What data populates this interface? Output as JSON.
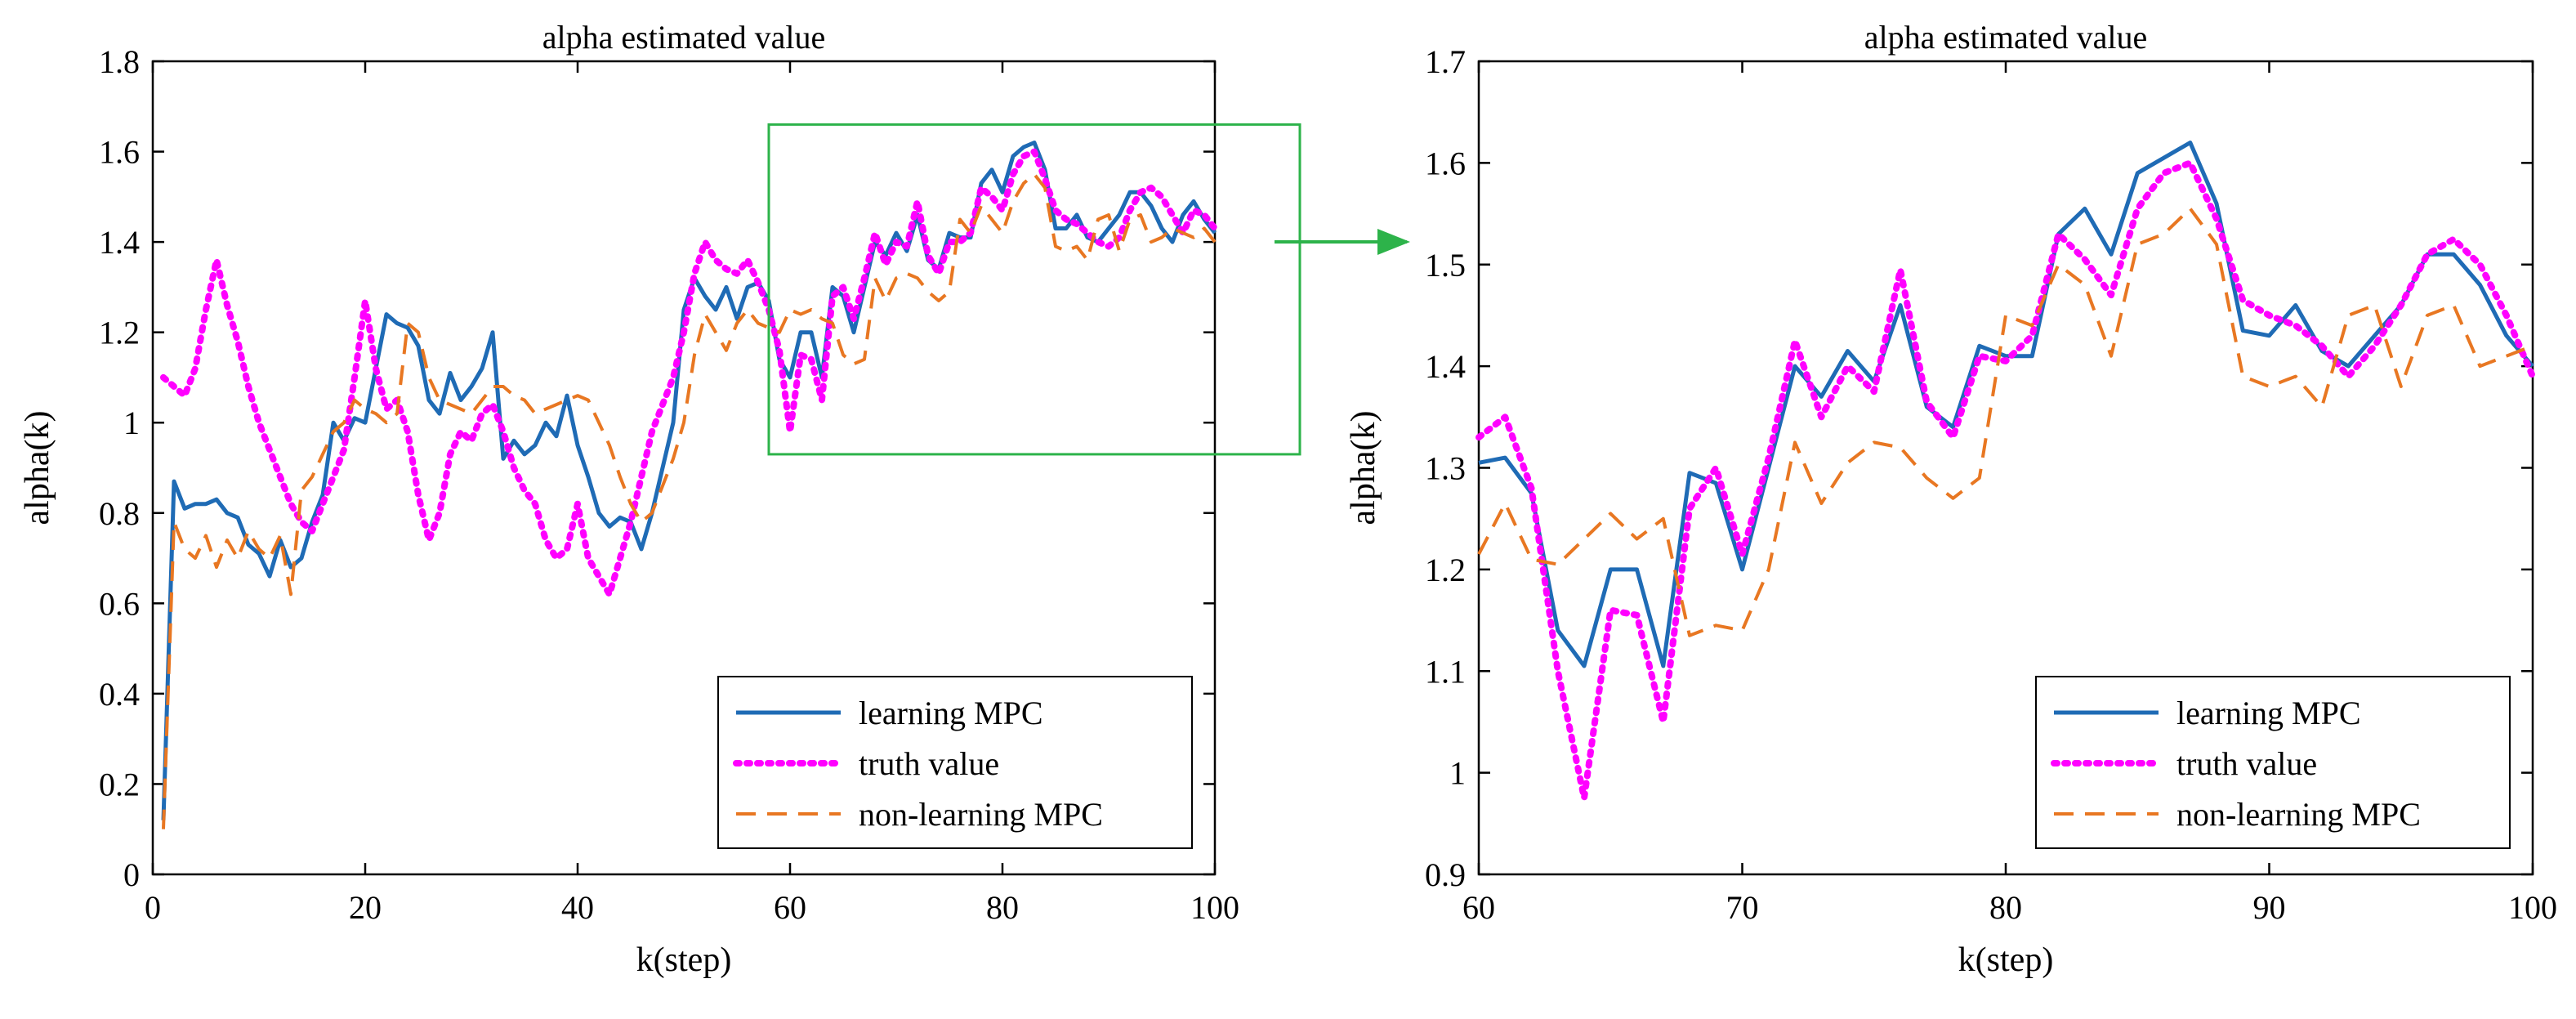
{
  "chart_data": [
    {
      "type": "line",
      "title": "alpha estimated value",
      "xlabel": "k(step)",
      "ylabel": "alpha(k)",
      "xlim": [
        0,
        100
      ],
      "ylim": [
        0,
        1.8
      ],
      "xticks": [
        0,
        20,
        40,
        60,
        80,
        100
      ],
      "yticks": [
        0,
        0.2,
        0.4,
        0.6,
        0.8,
        1,
        1.2,
        1.4,
        1.6,
        1.8
      ],
      "xtick_labels": [
        "0",
        "20",
        "40",
        "60",
        "80",
        "100"
      ],
      "ytick_labels": [
        "0",
        "0.2",
        "0.4",
        "0.6",
        "0.8",
        "1",
        "1.2",
        "1.4",
        "1.6",
        "1.8"
      ],
      "legend": {
        "position": "bottom-right",
        "entries": [
          "learning MPC",
          "truth value",
          "non-learning MPC"
        ]
      },
      "zoom_box": {
        "x": [
          58,
          108
        ],
        "y": [
          0.93,
          1.66
        ],
        "color": "#2db34a"
      },
      "series": [
        {
          "name": "learning MPC",
          "color": "#1f6bb5",
          "style": "solid",
          "x": [
            1,
            2,
            3,
            4,
            5,
            6,
            7,
            8,
            9,
            10,
            11,
            12,
            13,
            14,
            15,
            16,
            17,
            18,
            19,
            20,
            21,
            22,
            23,
            24,
            25,
            26,
            27,
            28,
            29,
            30,
            31,
            32,
            33,
            34,
            35,
            36,
            37,
            38,
            39,
            40,
            41,
            42,
            43,
            44,
            45,
            46,
            47,
            48,
            49,
            50,
            51,
            52,
            53,
            54,
            55,
            56,
            57,
            58,
            59,
            60,
            61,
            62,
            63,
            64,
            65,
            66,
            67,
            68,
            69,
            70,
            71,
            72,
            73,
            74,
            75,
            76,
            77,
            78,
            79,
            80,
            81,
            82,
            83,
            84,
            85,
            86,
            87,
            88,
            89,
            90,
            91,
            92,
            93,
            94,
            95,
            96,
            97,
            98,
            99,
            100
          ],
          "y": [
            0.12,
            0.87,
            0.81,
            0.82,
            0.82,
            0.83,
            0.8,
            0.79,
            0.73,
            0.71,
            0.66,
            0.74,
            0.68,
            0.7,
            0.78,
            0.84,
            1.0,
            0.96,
            1.01,
            1.0,
            1.12,
            1.24,
            1.22,
            1.21,
            1.17,
            1.05,
            1.02,
            1.11,
            1.05,
            1.08,
            1.12,
            1.2,
            0.92,
            0.96,
            0.93,
            0.95,
            1.0,
            0.97,
            1.06,
            0.95,
            0.88,
            0.8,
            0.77,
            0.79,
            0.78,
            0.72,
            0.8,
            0.9,
            1.0,
            1.25,
            1.32,
            1.28,
            1.25,
            1.3,
            1.23,
            1.3,
            1.31,
            1.27,
            1.14,
            1.1,
            1.2,
            1.2,
            1.1,
            1.3,
            1.28,
            1.2,
            1.3,
            1.4,
            1.37,
            1.42,
            1.38,
            1.46,
            1.36,
            1.34,
            1.42,
            1.41,
            1.41,
            1.53,
            1.56,
            1.51,
            1.59,
            1.61,
            1.62,
            1.56,
            1.43,
            1.43,
            1.46,
            1.41,
            1.4,
            1.43,
            1.46,
            1.51,
            1.51,
            1.48,
            1.43,
            1.4,
            1.46,
            1.49,
            1.45,
            1.42
          ]
        },
        {
          "name": "truth value",
          "color": "#ff00ff",
          "style": "dotted",
          "x": [
            1,
            2,
            3,
            4,
            5,
            6,
            7,
            8,
            9,
            10,
            11,
            12,
            13,
            14,
            15,
            16,
            17,
            18,
            19,
            20,
            21,
            22,
            23,
            24,
            25,
            26,
            27,
            28,
            29,
            30,
            31,
            32,
            33,
            34,
            35,
            36,
            37,
            38,
            39,
            40,
            41,
            42,
            43,
            44,
            45,
            46,
            47,
            48,
            49,
            50,
            51,
            52,
            53,
            54,
            55,
            56,
            57,
            58,
            59,
            60,
            61,
            62,
            63,
            64,
            65,
            66,
            67,
            68,
            69,
            70,
            71,
            72,
            73,
            74,
            75,
            76,
            77,
            78,
            79,
            80,
            81,
            82,
            83,
            84,
            85,
            86,
            87,
            88,
            89,
            90,
            91,
            92,
            93,
            94,
            95,
            96,
            97,
            98,
            99,
            100
          ],
          "y": [
            1.1,
            1.08,
            1.06,
            1.12,
            1.25,
            1.36,
            1.26,
            1.18,
            1.08,
            1.0,
            0.94,
            0.88,
            0.82,
            0.78,
            0.76,
            0.82,
            0.88,
            0.94,
            1.1,
            1.27,
            1.12,
            1.03,
            1.05,
            0.98,
            0.84,
            0.74,
            0.8,
            0.93,
            0.98,
            0.96,
            1.02,
            1.04,
            0.98,
            0.9,
            0.85,
            0.82,
            0.74,
            0.7,
            0.72,
            0.82,
            0.7,
            0.66,
            0.62,
            0.7,
            0.78,
            0.88,
            0.98,
            1.04,
            1.1,
            1.2,
            1.33,
            1.4,
            1.36,
            1.34,
            1.33,
            1.36,
            1.31,
            1.25,
            1.16,
            0.98,
            1.15,
            1.14,
            1.05,
            1.28,
            1.3,
            1.23,
            1.32,
            1.42,
            1.35,
            1.4,
            1.39,
            1.49,
            1.37,
            1.33,
            1.4,
            1.4,
            1.42,
            1.52,
            1.5,
            1.47,
            1.55,
            1.59,
            1.6,
            1.54,
            1.47,
            1.45,
            1.44,
            1.42,
            1.4,
            1.39,
            1.41,
            1.47,
            1.51,
            1.52,
            1.5,
            1.46,
            1.42,
            1.47,
            1.46,
            1.43
          ]
        },
        {
          "name": "non-learning MPC",
          "color": "#e87722",
          "style": "dashed",
          "x": [
            1,
            2,
            3,
            4,
            5,
            6,
            7,
            8,
            9,
            10,
            11,
            12,
            13,
            14,
            15,
            16,
            17,
            18,
            19,
            20,
            21,
            22,
            23,
            24,
            25,
            26,
            27,
            28,
            29,
            30,
            31,
            32,
            33,
            34,
            35,
            36,
            37,
            38,
            39,
            40,
            41,
            42,
            43,
            44,
            45,
            46,
            47,
            48,
            49,
            50,
            51,
            52,
            53,
            54,
            55,
            56,
            57,
            58,
            59,
            60,
            61,
            62,
            63,
            64,
            65,
            66,
            67,
            68,
            69,
            70,
            71,
            72,
            73,
            74,
            75,
            76,
            77,
            78,
            79,
            80,
            81,
            82,
            83,
            84,
            85,
            86,
            87,
            88,
            89,
            90,
            91,
            92,
            93,
            94,
            95,
            96,
            97,
            98,
            99,
            100
          ],
          "y": [
            0.1,
            0.78,
            0.72,
            0.7,
            0.75,
            0.68,
            0.74,
            0.7,
            0.76,
            0.72,
            0.7,
            0.75,
            0.62,
            0.85,
            0.88,
            0.93,
            0.98,
            1.0,
            1.05,
            1.03,
            1.02,
            1.0,
            1.02,
            1.22,
            1.2,
            1.1,
            1.05,
            1.04,
            1.03,
            1.02,
            1.05,
            1.08,
            1.08,
            1.06,
            1.05,
            1.02,
            1.03,
            1.04,
            1.05,
            1.06,
            1.05,
            1.0,
            0.95,
            0.88,
            0.82,
            0.78,
            0.8,
            0.86,
            0.92,
            1.0,
            1.15,
            1.24,
            1.2,
            1.16,
            1.22,
            1.25,
            1.22,
            1.21,
            1.2,
            1.25,
            1.24,
            1.25,
            1.23,
            1.22,
            1.15,
            1.13,
            1.14,
            1.32,
            1.27,
            1.32,
            1.33,
            1.32,
            1.29,
            1.27,
            1.29,
            1.45,
            1.42,
            1.48,
            1.45,
            1.42,
            1.49,
            1.53,
            1.55,
            1.52,
            1.39,
            1.38,
            1.39,
            1.36,
            1.45,
            1.46,
            1.38,
            1.45,
            1.46,
            1.4,
            1.41,
            1.43,
            1.42,
            1.41,
            1.43,
            1.4
          ]
        }
      ]
    },
    {
      "type": "line",
      "title": "alpha estimated value",
      "xlabel": "k(step)",
      "ylabel": "alpha(k)",
      "xlim": [
        60,
        100
      ],
      "ylim": [
        0.9,
        1.7
      ],
      "xticks": [
        60,
        70,
        80,
        90,
        100
      ],
      "yticks": [
        0.9,
        1,
        1.1,
        1.2,
        1.3,
        1.4,
        1.5,
        1.6,
        1.7
      ],
      "xtick_labels": [
        "60",
        "70",
        "80",
        "90",
        "100"
      ],
      "ytick_labels": [
        "0.9",
        "1",
        "1.1",
        "1.2",
        "1.3",
        "1.4",
        "1.5",
        "1.6",
        "1.7"
      ],
      "legend": {
        "position": "bottom-right",
        "entries": [
          "learning MPC",
          "truth value",
          "non-learning MPC"
        ]
      },
      "series": [
        {
          "name": "learning MPC",
          "color": "#1f6bb5",
          "style": "solid",
          "x": [
            60,
            61,
            62,
            63,
            64,
            65,
            66,
            67,
            68,
            69,
            70,
            71,
            72,
            73,
            74,
            75,
            76,
            77,
            78,
            79,
            80,
            81,
            82,
            83,
            84,
            85,
            86,
            87,
            88,
            89,
            90,
            91,
            92,
            93,
            94,
            95,
            96,
            97,
            98,
            99,
            100
          ],
          "y": [
            1.305,
            1.31,
            1.275,
            1.14,
            1.105,
            1.2,
            1.2,
            1.105,
            1.295,
            1.285,
            1.2,
            1.3,
            1.4,
            1.37,
            1.415,
            1.385,
            1.46,
            1.36,
            1.34,
            1.42,
            1.41,
            1.41,
            1.53,
            1.555,
            1.51,
            1.59,
            1.605,
            1.62,
            1.56,
            1.435,
            1.43,
            1.46,
            1.415,
            1.4,
            1.43,
            1.46,
            1.51,
            1.51,
            1.48,
            1.43,
            1.4
          ]
        },
        {
          "name": "truth value",
          "color": "#ff00ff",
          "style": "dotted",
          "x": [
            60,
            61,
            62,
            63,
            64,
            65,
            66,
            67,
            68,
            69,
            70,
            71,
            72,
            73,
            74,
            75,
            76,
            77,
            78,
            79,
            80,
            81,
            82,
            83,
            84,
            85,
            86,
            87,
            88,
            89,
            90,
            91,
            92,
            93,
            94,
            95,
            96,
            97,
            98,
            99,
            100
          ],
          "y": [
            1.33,
            1.35,
            1.28,
            1.1,
            0.975,
            1.16,
            1.155,
            1.05,
            1.26,
            1.3,
            1.215,
            1.31,
            1.425,
            1.35,
            1.4,
            1.375,
            1.495,
            1.365,
            1.33,
            1.41,
            1.405,
            1.43,
            1.53,
            1.505,
            1.47,
            1.555,
            1.59,
            1.6,
            1.545,
            1.465,
            1.45,
            1.44,
            1.42,
            1.39,
            1.42,
            1.46,
            1.51,
            1.525,
            1.5,
            1.45,
            1.39
          ]
        },
        {
          "name": "non-learning MPC",
          "color": "#e87722",
          "style": "dashed",
          "x": [
            60,
            61,
            62,
            63,
            64,
            65,
            66,
            67,
            68,
            69,
            70,
            71,
            72,
            73,
            74,
            75,
            76,
            77,
            78,
            79,
            80,
            81,
            82,
            83,
            84,
            85,
            86,
            87,
            88,
            89,
            90,
            91,
            92,
            93,
            94,
            95,
            96,
            97,
            98,
            99,
            100
          ],
          "y": [
            1.215,
            1.265,
            1.21,
            1.205,
            1.23,
            1.255,
            1.23,
            1.25,
            1.135,
            1.145,
            1.14,
            1.2,
            1.325,
            1.265,
            1.305,
            1.325,
            1.32,
            1.29,
            1.27,
            1.29,
            1.45,
            1.44,
            1.5,
            1.48,
            1.41,
            1.52,
            1.53,
            1.555,
            1.52,
            1.39,
            1.38,
            1.39,
            1.36,
            1.45,
            1.46,
            1.38,
            1.45,
            1.46,
            1.4,
            1.41,
            1.42
          ]
        }
      ]
    }
  ]
}
